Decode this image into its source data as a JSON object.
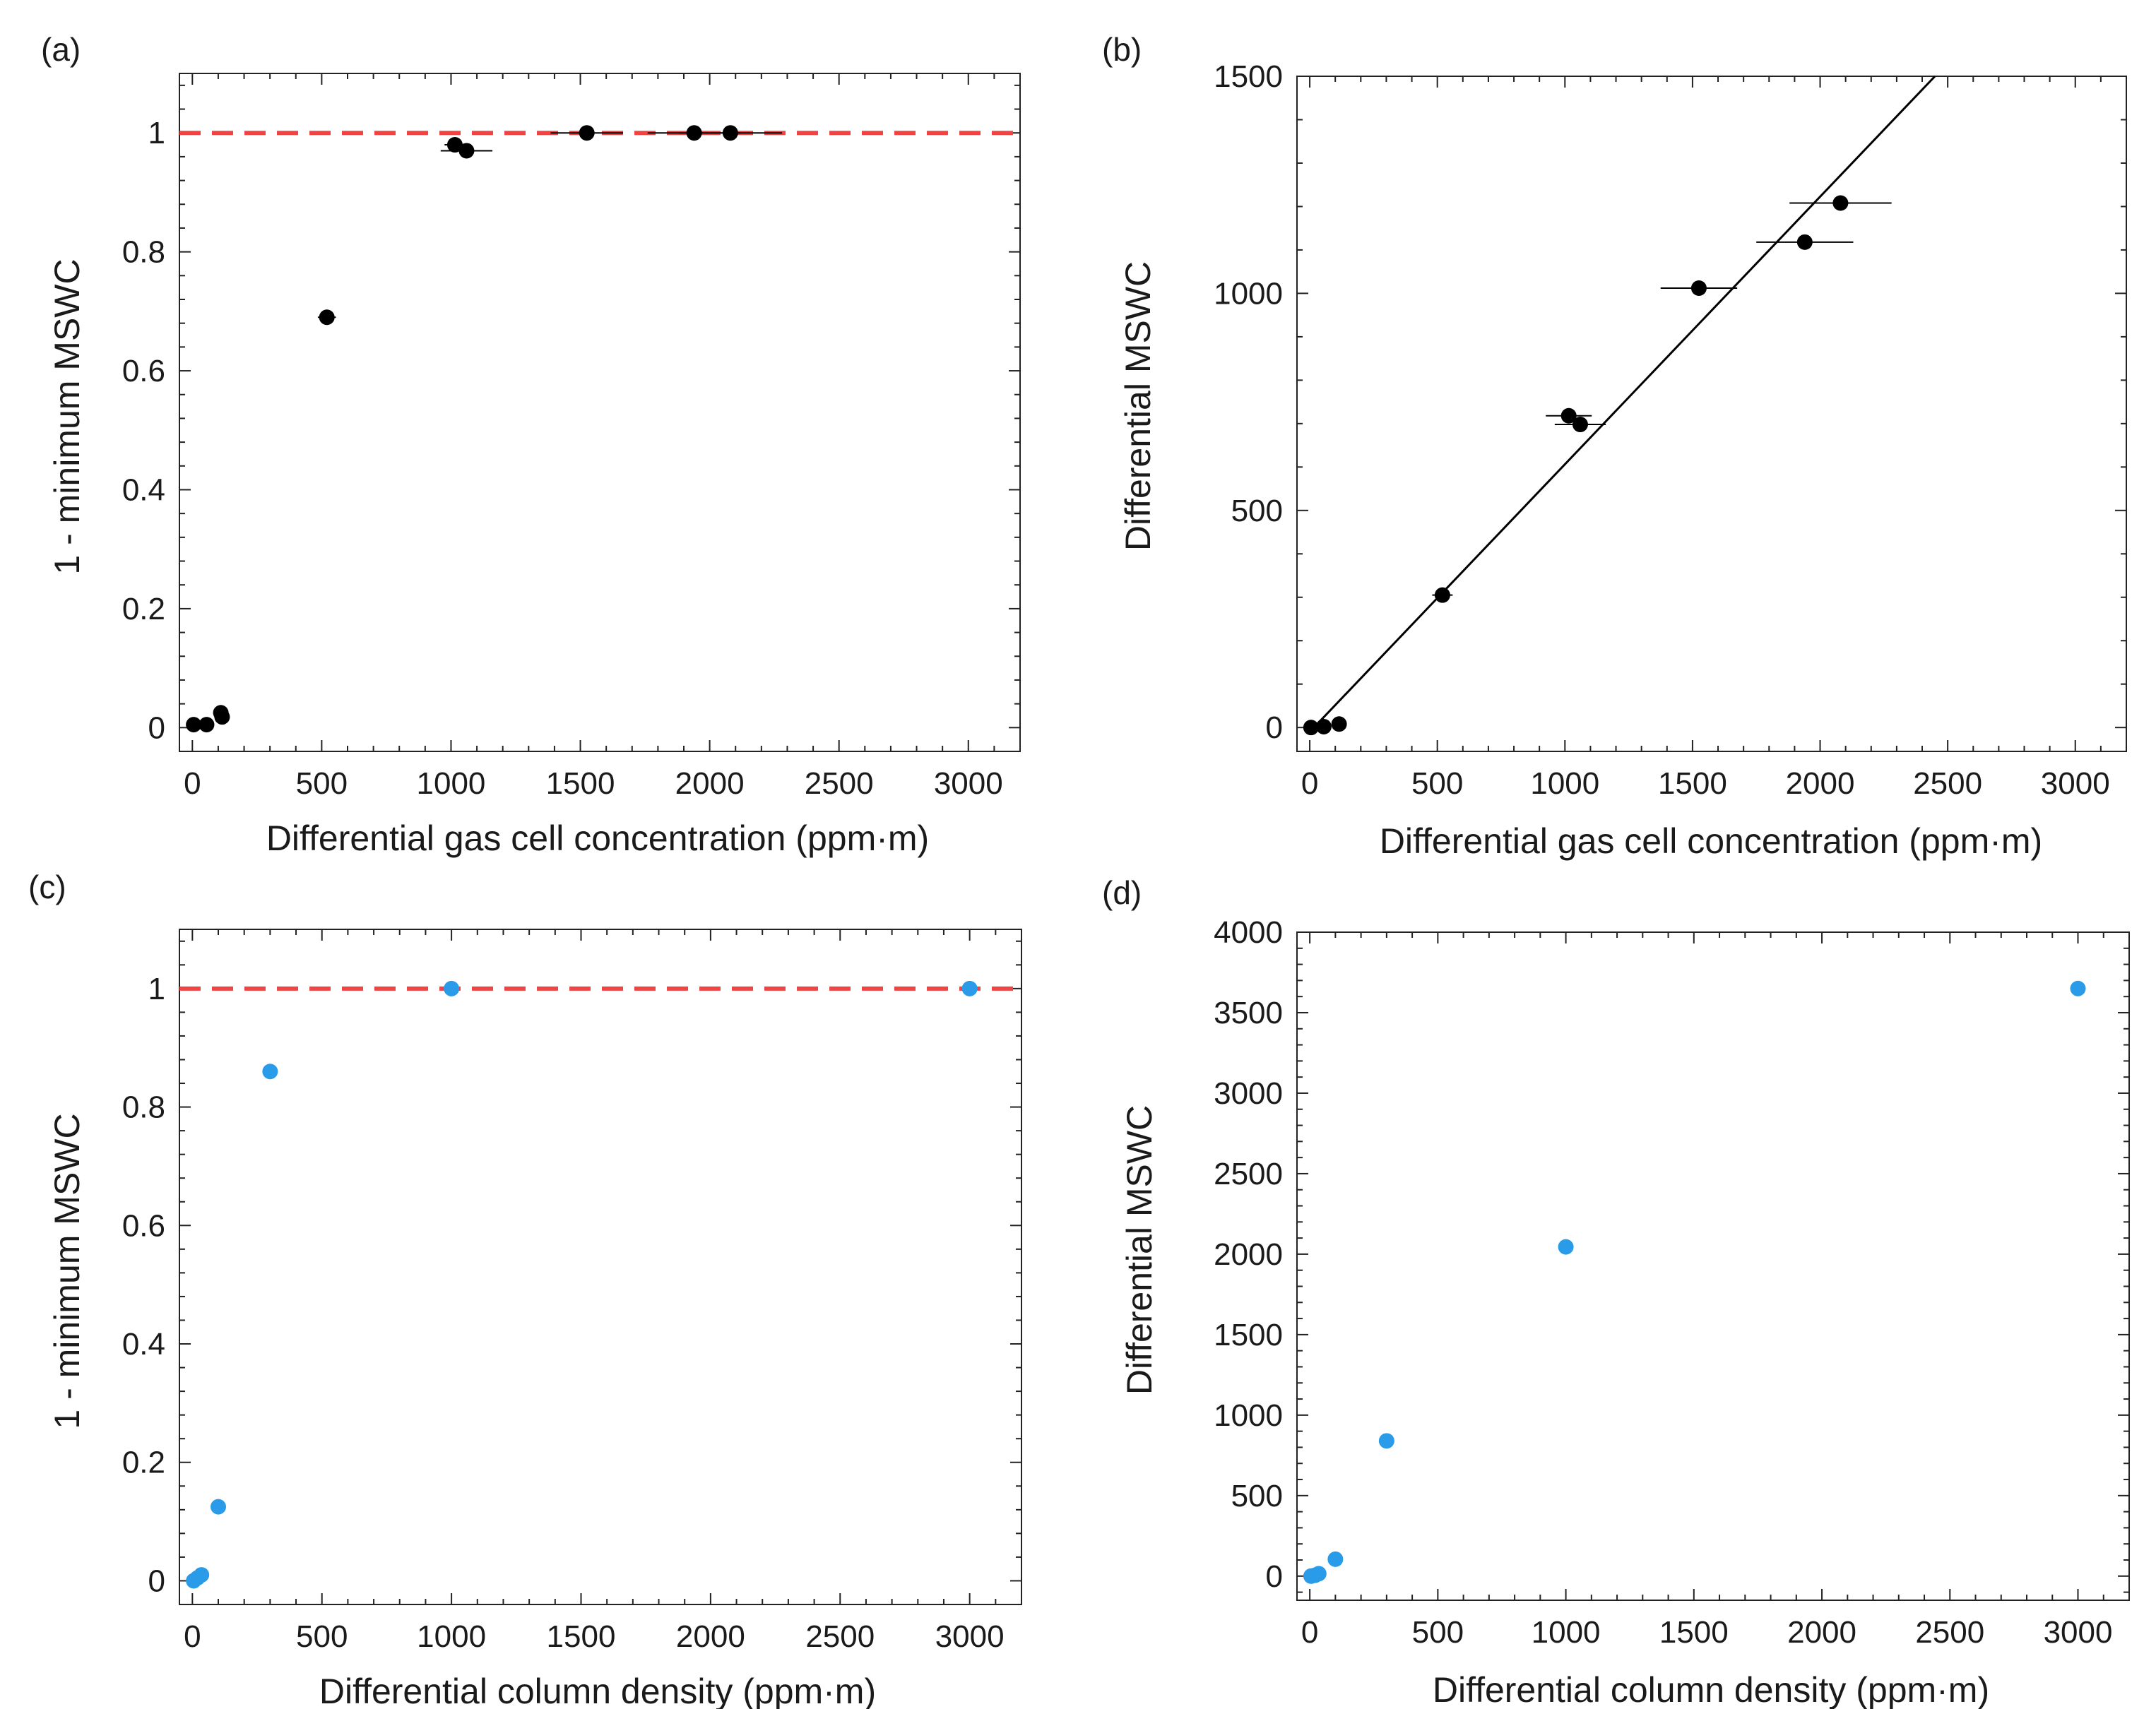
{
  "chart_data": [
    {
      "panel": "(a)",
      "type": "scatter",
      "xlabel": "Differential gas cell concentration (ppm·m)",
      "ylabel": "1 - minimum MSWC",
      "xlim": [
        -50,
        3200
      ],
      "ylim": [
        -0.04,
        1.1
      ],
      "xticks": [
        0,
        500,
        1000,
        1500,
        2000,
        2500,
        3000
      ],
      "yticks": [
        0,
        0.2,
        0.4,
        0.6,
        0.8,
        1
      ],
      "ytick_labels": [
        "0",
        "0.2",
        "0.4",
        "0.6",
        "0.8",
        "1"
      ],
      "grid": false,
      "reference_line": {
        "y": 1,
        "color": "#ee4444",
        "style": "dashed"
      },
      "series": [
        {
          "color": "#000000",
          "points": [
            {
              "x": 5,
              "y": 0.005,
              "xerr": 0
            },
            {
              "x": 55,
              "y": 0.005,
              "xerr": 0
            },
            {
              "x": 110,
              "y": 0.025,
              "xerr": 0
            },
            {
              "x": 115,
              "y": 0.018,
              "xerr": 0
            },
            {
              "x": 520,
              "y": 0.69,
              "xerr": 35
            },
            {
              "x": 1015,
              "y": 0.98,
              "xerr": 40
            },
            {
              "x": 1060,
              "y": 0.97,
              "xerr": 100
            },
            {
              "x": 1525,
              "y": 1.0,
              "xerr": 140
            },
            {
              "x": 1940,
              "y": 1.0,
              "xerr": 180
            },
            {
              "x": 2080,
              "y": 1.0,
              "xerr": 200
            }
          ]
        }
      ]
    },
    {
      "panel": "(b)",
      "type": "scatter",
      "xlabel": "Differential gas cell concentration (ppm·m)",
      "ylabel": "Differential MSWC",
      "xlim": [
        -50,
        3200
      ],
      "ylim": [
        -55,
        1500
      ],
      "xticks": [
        0,
        500,
        1000,
        1500,
        2000,
        2500,
        3000
      ],
      "yticks": [
        0,
        500,
        1000,
        1500
      ],
      "grid": false,
      "fit_line": {
        "x": [
          0,
          2450
        ],
        "y": [
          -10,
          1500
        ],
        "color": "#000000"
      },
      "series": [
        {
          "color": "#000000",
          "points": [
            {
              "x": 5,
              "y": 0,
              "xerr": 0
            },
            {
              "x": 55,
              "y": 2,
              "xerr": 0
            },
            {
              "x": 115,
              "y": 8,
              "xerr": 0
            },
            {
              "x": 520,
              "y": 305,
              "xerr": 40
            },
            {
              "x": 1015,
              "y": 718,
              "xerr": 90
            },
            {
              "x": 1060,
              "y": 698,
              "xerr": 100
            },
            {
              "x": 1525,
              "y": 1012,
              "xerr": 150
            },
            {
              "x": 1940,
              "y": 1118,
              "xerr": 190
            },
            {
              "x": 2080,
              "y": 1208,
              "xerr": 200
            }
          ]
        }
      ]
    },
    {
      "panel": "(c)",
      "type": "scatter",
      "xlabel": "Differential column density (ppm·m)",
      "ylabel": "1 - minimum MSWC",
      "xlim": [
        -50,
        3200
      ],
      "ylim": [
        -0.04,
        1.1
      ],
      "xticks": [
        0,
        500,
        1000,
        1500,
        2000,
        2500,
        3000
      ],
      "yticks": [
        0,
        0.2,
        0.4,
        0.6,
        0.8,
        1
      ],
      "ytick_labels": [
        "0",
        "0.2",
        "0.4",
        "0.6",
        "0.8",
        "1"
      ],
      "grid": false,
      "reference_line": {
        "y": 1,
        "color": "#ee4444",
        "style": "dashed"
      },
      "series": [
        {
          "color": "#2a9be8",
          "points": [
            {
              "x": 5,
              "y": 0.0
            },
            {
              "x": 20,
              "y": 0.005
            },
            {
              "x": 35,
              "y": 0.01
            },
            {
              "x": 100,
              "y": 0.125
            },
            {
              "x": 300,
              "y": 0.86
            },
            {
              "x": 1000,
              "y": 1.0
            },
            {
              "x": 3000,
              "y": 1.0
            }
          ]
        }
      ]
    },
    {
      "panel": "(d)",
      "type": "scatter",
      "xlabel": "Differential column density (ppm·m)",
      "ylabel": "Differential MSWC",
      "xlim": [
        -50,
        3200
      ],
      "ylim": [
        -150,
        4000
      ],
      "xticks": [
        0,
        500,
        1000,
        1500,
        2000,
        2500,
        3000
      ],
      "yticks": [
        0,
        500,
        1000,
        1500,
        2000,
        2500,
        3000,
        3500,
        4000
      ],
      "grid": false,
      "series": [
        {
          "color": "#2a9be8",
          "points": [
            {
              "x": 5,
              "y": 0
            },
            {
              "x": 20,
              "y": 5
            },
            {
              "x": 35,
              "y": 15
            },
            {
              "x": 100,
              "y": 105
            },
            {
              "x": 300,
              "y": 840
            },
            {
              "x": 1000,
              "y": 2045
            },
            {
              "x": 3000,
              "y": 3650
            }
          ]
        }
      ]
    }
  ]
}
